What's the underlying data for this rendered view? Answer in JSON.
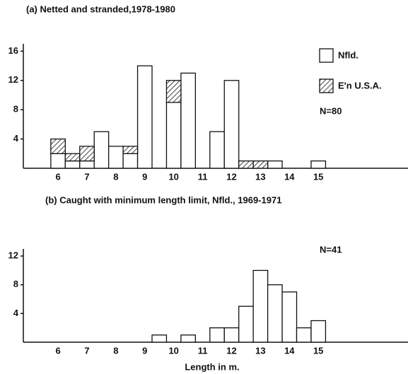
{
  "chart_data": [
    {
      "type": "histogram",
      "title": "(a) Netted and stranded,1978-1980",
      "bins": [
        5.75,
        6.25,
        6.75,
        7.25,
        7.75,
        8.25,
        8.75,
        9.25,
        9.75,
        10.25,
        10.75,
        11.25,
        11.75,
        12.25,
        12.75,
        13.25,
        13.75,
        14.25,
        14.75,
        15.25
      ],
      "series": [
        {
          "name": "Nfld.",
          "color": "#ffffff",
          "values": [
            2,
            1,
            1,
            5,
            3,
            2,
            14,
            0,
            9,
            13,
            0,
            5,
            12,
            0,
            0,
            1,
            0,
            0,
            1
          ]
        },
        {
          "name": "E'n U.S.A.",
          "color": "hatch",
          "values": [
            2,
            1,
            2,
            0,
            0,
            1,
            0,
            0,
            3,
            0,
            0,
            0,
            0,
            1,
            1,
            0,
            0,
            0,
            0
          ]
        }
      ],
      "annotation": "N=80",
      "xlim": [
        4.8,
        18.1
      ],
      "xticks": [
        6,
        7,
        8,
        9,
        10,
        11,
        12,
        13,
        14,
        15
      ],
      "ylim": [
        0,
        17
      ],
      "yticks": [
        4,
        8,
        12,
        16
      ],
      "stacked": true,
      "legend": "upper right"
    },
    {
      "type": "histogram",
      "title": "(b) Caught with minimum length limit, Nfld., 1969-1971",
      "bins": [
        5.75,
        6.25,
        6.75,
        7.25,
        7.75,
        8.25,
        8.75,
        9.25,
        9.75,
        10.25,
        10.75,
        11.25,
        11.75,
        12.25,
        12.75,
        13.25,
        13.75,
        14.25,
        14.75,
        15.25
      ],
      "values": [
        0,
        0,
        0,
        0,
        0,
        0,
        0,
        1,
        0,
        1,
        0,
        2,
        2,
        5,
        10,
        8,
        7,
        2,
        3
      ],
      "color": "#ffffff",
      "annotation": "N=41",
      "xlabel": "Length in m.",
      "xlim": [
        4.8,
        18.1
      ],
      "xticks": [
        6,
        7,
        8,
        9,
        10,
        11,
        12,
        13,
        14,
        15
      ],
      "ylim": [
        0,
        13
      ],
      "yticks": [
        4,
        8,
        12
      ]
    }
  ]
}
